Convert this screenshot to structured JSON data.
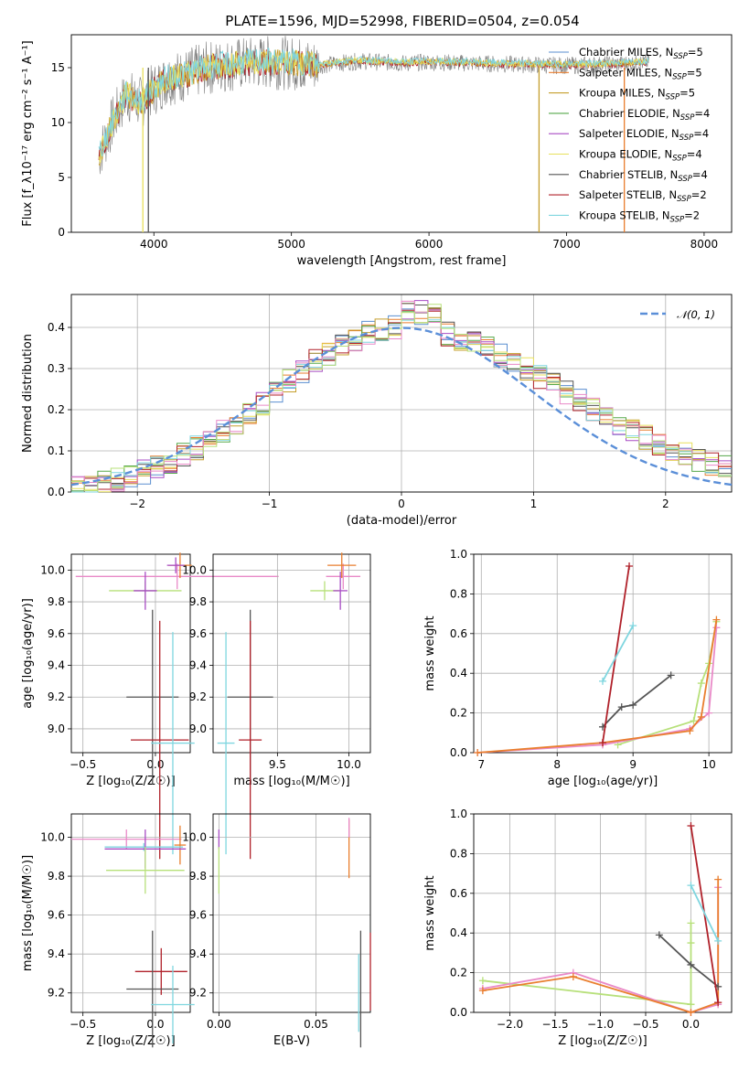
{
  "title": "PLATE=1596, MJD=52998, FIBERID=0504, z=0.054",
  "colors": {
    "MILES_Chabrier": "#5b8fd0",
    "MILES_Salpeter": "#e97e2e",
    "MILES_Kroupa": "#c59f2d",
    "ELODIE_Chabrier": "#56a84a",
    "ELODIE_Salpeter": "#a84cc4",
    "ELODIE_Kroupa": "#e8e05c",
    "STELIB_Chabrier": "#555555",
    "STELIB_Salpeter": "#b0212a",
    "STELIB_Kroupa": "#7fd6df",
    "pink": "#e98ac8",
    "lime": "#b7e07a",
    "gaussian": "#5b8fd8"
  },
  "chart_data": [
    {
      "type": "line",
      "panel": "spectrum",
      "xlabel": "wavelength [Angstrom, rest frame]",
      "ylabel": "Flux [f_λ10⁻¹⁷ erg cm⁻² s⁻¹ A⁻¹]",
      "xlim": [
        3400,
        8200
      ],
      "ylim": [
        0,
        18
      ],
      "xticks": [
        "4000",
        "5000",
        "6000",
        "7000",
        "8000"
      ],
      "yticks": [
        "0",
        "5",
        "10",
        "15"
      ],
      "legend": [
        {
          "name": "Chabrier MILES, N",
          "sub": "SSP",
          "suffix": "=5",
          "color_key": "MILES_Chabrier"
        },
        {
          "name": "Salpeter MILES, N",
          "sub": "SSP",
          "suffix": "=5",
          "color_key": "MILES_Salpeter"
        },
        {
          "name": "Kroupa MILES, N",
          "sub": "SSP",
          "suffix": "=5",
          "color_key": "MILES_Kroupa"
        },
        {
          "name": "Chabrier ELODIE, N",
          "sub": "SSP",
          "suffix": "=4",
          "color_key": "ELODIE_Chabrier"
        },
        {
          "name": "Salpeter ELODIE, N",
          "sub": "SSP",
          "suffix": "=4",
          "color_key": "ELODIE_Salpeter"
        },
        {
          "name": "Kroupa ELODIE, N",
          "sub": "SSP",
          "suffix": "=4",
          "color_key": "ELODIE_Kroupa"
        },
        {
          "name": "Chabrier STELIB, N",
          "sub": "SSP",
          "suffix": "=4",
          "color_key": "STELIB_Chabrier"
        },
        {
          "name": "Salpeter STELIB, N",
          "sub": "SSP",
          "suffix": "=2",
          "color_key": "STELIB_Salpeter"
        },
        {
          "name": "Kroupa STELIB, N",
          "sub": "SSP",
          "suffix": "=2",
          "color_key": "STELIB_Kroupa"
        }
      ],
      "legend_placement": "upper-right",
      "series_note": "continuum level",
      "continuum": {
        "x": [
          3600,
          3700,
          3800,
          3900,
          4000,
          4100,
          4200,
          4400,
          4600,
          4800,
          5000,
          5200,
          5500,
          5800,
          6000,
          6300,
          6600,
          7000,
          7300,
          7500,
          7600
        ],
        "y": [
          7.0,
          10.0,
          12.5,
          11.8,
          13.0,
          14.0,
          14.2,
          15.0,
          15.3,
          15.5,
          15.4,
          15.2,
          15.6,
          15.4,
          15.5,
          15.4,
          15.3,
          15.2,
          15.3,
          15.4,
          15.5
        ]
      },
      "cutoffs": [
        {
          "color_key": "MILES_Kroupa",
          "x": 6800
        },
        {
          "color_key": "MILES_Salpeter",
          "x": 7420
        },
        {
          "color_key": "ELODIE_Kroupa",
          "x": 3920
        },
        {
          "color_key": "STELIB_Chabrier",
          "x": 3960
        }
      ]
    },
    {
      "type": "step",
      "panel": "residuals",
      "xlabel": "(data-model)/error",
      "ylabel": "Normed distribution",
      "xlim": [
        -2.5,
        2.5
      ],
      "ylim": [
        0,
        0.48
      ],
      "xticks": [
        "−2",
        "−1",
        "0",
        "1",
        "2"
      ],
      "yticks": [
        "0.0",
        "0.1",
        "0.2",
        "0.3",
        "0.4"
      ],
      "grid": true,
      "gaussian": {
        "mu": 0,
        "sigma": 1
      },
      "legend": [
        {
          "name": "𝒩(0, 1)",
          "color_key": "gaussian",
          "style": "dashed"
        }
      ],
      "legend_placement": "upper-right",
      "bin_width": 0.1
    },
    {
      "type": "errorbar",
      "panel": "age-vs-Z",
      "xlabel": "Z [log₁₀(Z/Z☉)]",
      "ylabel": "age  [log₁₀(age/yr)]",
      "xlim": [
        -0.58,
        0.24
      ],
      "ylim": [
        8.85,
        10.1
      ],
      "xticks": [
        "−0.5",
        "0.0"
      ],
      "yticks": [
        "9.0",
        "9.2",
        "9.4",
        "9.6",
        "9.8",
        "10.0"
      ],
      "grid": true,
      "points": [
        {
          "color_key": "pink",
          "x": 0.15,
          "xerr": 0.7,
          "y": 9.96,
          "yerr": 0.08
        },
        {
          "color_key": "MILES_Salpeter",
          "x": 0.17,
          "xerr": 0.08,
          "y": 10.03,
          "yerr": 0.08
        },
        {
          "color_key": "ELODIE_Salpeter",
          "x": 0.14,
          "xerr": 0.06,
          "y": 10.03,
          "yerr": 0.05
        },
        {
          "color_key": "lime",
          "x": -0.07,
          "xerr": 0.25,
          "y": 9.87,
          "yerr": 0.06
        },
        {
          "color_key": "ELODIE_Salpeter",
          "x": -0.07,
          "xerr": 0.08,
          "y": 9.87,
          "yerr": 0.12
        },
        {
          "color_key": "STELIB_Chabrier",
          "x": -0.02,
          "xerr": 0.18,
          "y": 9.2,
          "yerr": 0.55
        },
        {
          "color_key": "STELIB_Salpeter",
          "x": 0.03,
          "xerr": 0.2,
          "y": 8.93,
          "yerr": 0.75
        },
        {
          "color_key": "STELIB_Kroupa",
          "x": 0.12,
          "xerr": 0.15,
          "y": 8.91,
          "yerr": 0.7
        }
      ]
    },
    {
      "type": "errorbar",
      "panel": "age-vs-mass",
      "xlabel": "mass [log₁₀(M/M☉)]",
      "xlim": [
        9.05,
        10.15
      ],
      "ylim": [
        8.85,
        10.1
      ],
      "xticks": [
        "9.5",
        "10.0"
      ],
      "yticks": [
        "9.0",
        "9.2",
        "9.4",
        "9.6",
        "9.8",
        "10.0"
      ],
      "grid": true,
      "points": [
        {
          "color_key": "pink",
          "x": 9.96,
          "xerr": 0.12,
          "y": 9.96,
          "yerr": 0.08
        },
        {
          "color_key": "MILES_Salpeter",
          "x": 9.95,
          "xerr": 0.1,
          "y": 10.03,
          "yerr": 0.08
        },
        {
          "color_key": "lime",
          "x": 9.83,
          "xerr": 0.1,
          "y": 9.87,
          "yerr": 0.06
        },
        {
          "color_key": "ELODIE_Salpeter",
          "x": 9.94,
          "xerr": 0.05,
          "y": 9.87,
          "yerr": 0.12
        },
        {
          "color_key": "STELIB_Chabrier",
          "x": 9.31,
          "xerr": 0.16,
          "y": 9.2,
          "yerr": 0.55
        },
        {
          "color_key": "STELIB_Salpeter",
          "x": 9.31,
          "xerr": 0.08,
          "y": 8.93,
          "yerr": 0.75
        },
        {
          "color_key": "STELIB_Kroupa",
          "x": 9.14,
          "xerr": 0.06,
          "y": 8.91,
          "yerr": 0.7
        }
      ]
    },
    {
      "type": "line",
      "panel": "mass-weight-vs-age",
      "xlabel": "age  [log₁₀(age/yr)]",
      "ylabel": "mass weight",
      "xlim": [
        6.9,
        10.3
      ],
      "ylim": [
        0,
        1.0
      ],
      "xticks": [
        "7",
        "8",
        "9",
        "10"
      ],
      "yticks": [
        "0.0",
        "0.2",
        "0.4",
        "0.6",
        "0.8",
        "1.0"
      ],
      "grid": true,
      "series": [
        {
          "color_key": "lime",
          "x": [
            8.8,
            9.8,
            9.9,
            10.0,
            10.1
          ],
          "y": [
            0.04,
            0.16,
            0.35,
            0.45,
            0.66
          ]
        },
        {
          "color_key": "pink",
          "x": [
            6.95,
            8.6,
            9.75,
            10.0,
            10.1
          ],
          "y": [
            0.0,
            0.04,
            0.12,
            0.2,
            0.63
          ]
        },
        {
          "color_key": "MILES_Salpeter",
          "x": [
            6.95,
            8.6,
            9.75,
            9.9,
            10.1
          ],
          "y": [
            0.0,
            0.05,
            0.11,
            0.18,
            0.67
          ]
        },
        {
          "color_key": "STELIB_Chabrier",
          "x": [
            8.6,
            8.85,
            9.0,
            9.5
          ],
          "y": [
            0.13,
            0.23,
            0.24,
            0.39
          ]
        },
        {
          "color_key": "STELIB_Salpeter",
          "x": [
            8.6,
            8.95
          ],
          "y": [
            0.05,
            0.94
          ]
        },
        {
          "color_key": "STELIB_Kroupa",
          "x": [
            8.6,
            9.0
          ],
          "y": [
            0.36,
            0.64
          ]
        }
      ]
    },
    {
      "type": "errorbar",
      "panel": "mass-vs-Z",
      "xlabel": "Z [log₁₀(Z/Z☉)]",
      "ylabel": "mass [log₁₀(M/M☉)]",
      "xlim": [
        -0.58,
        0.24
      ],
      "ylim": [
        9.1,
        10.12
      ],
      "xticks": [
        "−0.5",
        "0.0"
      ],
      "yticks": [
        "9.2",
        "9.4",
        "9.6",
        "9.8",
        "10.0"
      ],
      "grid": true,
      "points": [
        {
          "color_key": "pink",
          "x": -0.2,
          "xerr": 0.38,
          "y": 9.99,
          "yerr": 0.05
        },
        {
          "color_key": "MILES_Salpeter",
          "x": 0.17,
          "xerr": 0.04,
          "y": 9.96,
          "yerr": 0.1
        },
        {
          "color_key": "STELIB_Kroupa",
          "x": -0.08,
          "xerr": 0.27,
          "y": 9.95,
          "yerr": 0.02
        },
        {
          "color_key": "ELODIE_Salpeter",
          "x": -0.07,
          "xerr": 0.28,
          "y": 9.94,
          "yerr": 0.1
        },
        {
          "color_key": "lime",
          "x": -0.07,
          "xerr": 0.27,
          "y": 9.83,
          "yerr": 0.12
        },
        {
          "color_key": "STELIB_Salpeter",
          "x": 0.04,
          "xerr": 0.18,
          "y": 9.31,
          "yerr": 0.12
        },
        {
          "color_key": "STELIB_Chabrier",
          "x": -0.02,
          "xerr": 0.18,
          "y": 9.22,
          "yerr": 0.3
        },
        {
          "color_key": "STELIB_Kroupa",
          "x": 0.12,
          "xerr": 0.15,
          "y": 9.14,
          "yerr": 0.2
        }
      ]
    },
    {
      "type": "errorbar",
      "panel": "mass-vs-EBV",
      "xlabel": "E(B-V)",
      "xlim": [
        -0.003,
        0.078
      ],
      "ylim": [
        9.1,
        10.12
      ],
      "xticks": [
        "0.00",
        "0.05"
      ],
      "yticks": [
        "9.2",
        "9.4",
        "9.6",
        "9.8",
        "10.0"
      ],
      "grid": true,
      "points": [
        {
          "color_key": "ELODIE_Salpeter",
          "x": 0.0,
          "xerr": 0.0,
          "y": 9.99,
          "yerr": 0.05
        },
        {
          "color_key": "lime",
          "x": 0.0,
          "xerr": 0.0,
          "y": 9.83,
          "yerr": 0.12
        },
        {
          "color_key": "MILES_Salpeter",
          "x": 0.067,
          "xerr": 0.0,
          "y": 9.94,
          "yerr": 0.15
        },
        {
          "color_key": "pink",
          "x": 0.067,
          "xerr": 0.0,
          "y": 10.05,
          "yerr": 0.05
        },
        {
          "color_key": "STELIB_Chabrier",
          "x": 0.073,
          "xerr": 0.0,
          "y": 9.22,
          "yerr": 0.3
        },
        {
          "color_key": "STELIB_Kroupa",
          "x": 0.072,
          "xerr": 0.0,
          "y": 9.2,
          "yerr": 0.2
        },
        {
          "color_key": "STELIB_Salpeter",
          "x": 0.078,
          "xerr": 0.0,
          "y": 9.31,
          "yerr": 0.2
        }
      ]
    },
    {
      "type": "line",
      "panel": "mass-weight-vs-Z",
      "xlabel": "Z [log₁₀(Z/Z☉)]",
      "ylabel": "mass weight",
      "xlim": [
        -2.4,
        0.45
      ],
      "ylim": [
        0,
        1.0
      ],
      "xticks": [
        "−2.0",
        "−1.5",
        "−1.0",
        "−0.5",
        "0.0"
      ],
      "yticks": [
        "0.0",
        "0.2",
        "0.4",
        "0.6",
        "0.8",
        "1.0"
      ],
      "grid": true,
      "series": [
        {
          "color_key": "lime",
          "x": [
            -2.3,
            0.0,
            0.0,
            0.0,
            0.0
          ],
          "y": [
            0.16,
            0.04,
            0.35,
            0.45,
            0.04
          ]
        },
        {
          "color_key": "pink",
          "x": [
            -2.3,
            -1.3,
            0.0,
            0.3,
            0.3
          ],
          "y": [
            0.12,
            0.2,
            0.0,
            0.04,
            0.63
          ]
        },
        {
          "color_key": "MILES_Salpeter",
          "x": [
            -2.3,
            -1.3,
            0.0,
            0.3,
            0.3
          ],
          "y": [
            0.11,
            0.18,
            0.0,
            0.05,
            0.67
          ]
        },
        {
          "color_key": "STELIB_Chabrier",
          "x": [
            -0.35,
            0.0,
            0.3
          ],
          "y": [
            0.39,
            0.24,
            0.13
          ]
        },
        {
          "color_key": "STELIB_Salpeter",
          "x": [
            0.0,
            0.3
          ],
          "y": [
            0.94,
            0.05
          ]
        },
        {
          "color_key": "STELIB_Kroupa",
          "x": [
            0.0,
            0.3
          ],
          "y": [
            0.64,
            0.36
          ]
        }
      ]
    }
  ]
}
